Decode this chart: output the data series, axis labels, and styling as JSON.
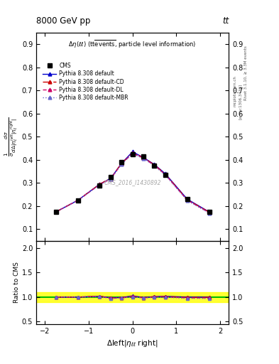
{
  "title_top": "8000 GeV pp",
  "title_right": "tt",
  "watermark": "CMS_2016_I1430892",
  "right_label": "Rivet 3.1.10, ≥ 3.3M events",
  "right_label2": "[arXiv:1306.3436]",
  "right_label3": "mcplots.cern.ch",
  "ylabel_ratio": "Ratio to CMS",
  "xlabel": "Δleft|ηₗₗ right|",
  "xlim": [
    -2.2,
    2.2
  ],
  "ylim_main": [
    0.05,
    0.95
  ],
  "ylim_ratio": [
    0.45,
    2.15
  ],
  "yticks_main": [
    0.1,
    0.2,
    0.3,
    0.4,
    0.5,
    0.6,
    0.7,
    0.8,
    0.9
  ],
  "yticks_ratio": [
    0.5,
    1.0,
    1.5,
    2.0
  ],
  "xticks": [
    -2,
    -1,
    0,
    1,
    2
  ],
  "x_data": [
    -1.75,
    -1.25,
    -0.75,
    -0.5,
    -0.25,
    0.0,
    0.25,
    0.5,
    0.75,
    1.25,
    1.75
  ],
  "cms_y": [
    0.175,
    0.225,
    0.29,
    0.325,
    0.39,
    0.425,
    0.415,
    0.375,
    0.335,
    0.23,
    0.175
  ],
  "pythia_default_y": [
    0.175,
    0.225,
    0.295,
    0.32,
    0.385,
    0.435,
    0.41,
    0.38,
    0.34,
    0.23,
    0.175
  ],
  "pythia_cd_y": [
    0.175,
    0.225,
    0.295,
    0.32,
    0.385,
    0.43,
    0.41,
    0.378,
    0.338,
    0.228,
    0.174
  ],
  "pythia_dl_y": [
    0.175,
    0.225,
    0.293,
    0.318,
    0.383,
    0.428,
    0.408,
    0.376,
    0.336,
    0.226,
    0.172
  ],
  "pythia_mbr_y": [
    0.175,
    0.225,
    0.292,
    0.316,
    0.382,
    0.426,
    0.406,
    0.374,
    0.334,
    0.224,
    0.17
  ],
  "ratio_default": [
    1.0,
    1.0,
    1.015,
    0.985,
    0.99,
    1.025,
    0.99,
    1.01,
    1.015,
    1.0,
    1.0
  ],
  "ratio_cd": [
    1.0,
    1.0,
    1.015,
    0.985,
    0.99,
    1.015,
    0.99,
    1.008,
    1.01,
    0.992,
    0.994
  ],
  "ratio_dl": [
    1.0,
    1.0,
    1.01,
    0.978,
    0.982,
    1.01,
    0.983,
    1.003,
    1.003,
    0.983,
    0.983
  ],
  "ratio_mbr": [
    1.0,
    1.0,
    1.007,
    0.972,
    0.98,
    1.003,
    0.978,
    0.997,
    0.997,
    0.974,
    0.972
  ],
  "color_cms": "#000000",
  "color_default": "#0000cc",
  "color_cd": "#cc0000",
  "color_dl": "#cc0066",
  "color_mbr": "#6666cc",
  "band_yellow": "#ffff00",
  "band_green": "#00bb00",
  "bg_color": "#ffffff"
}
